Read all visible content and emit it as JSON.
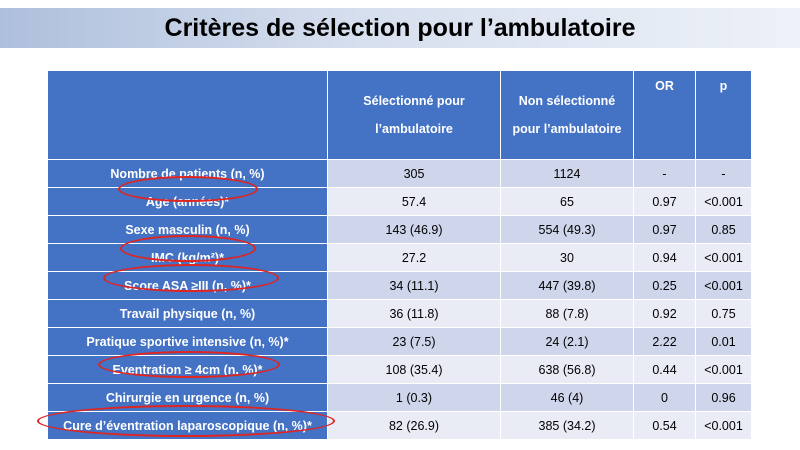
{
  "title": "Critères de sélection pour l’ambulatoire",
  "table": {
    "headers": {
      "label": "",
      "selected": [
        "Sélectionné pour",
        "l’ambulatoire"
      ],
      "not_selected": [
        "Non sélectionné",
        "pour l’ambulatoire"
      ],
      "or": "OR",
      "p": "p"
    },
    "rows": [
      {
        "label": "Nombre de patients (n, %)",
        "selected": "305",
        "not_selected": "1124",
        "or": "-",
        "p": "-"
      },
      {
        "label": "Age (années)*",
        "selected": "57.4",
        "not_selected": "65",
        "or": "0.97",
        "p": "<0.001"
      },
      {
        "label": "Sexe masculin (n, %)",
        "selected": "143 (46.9)",
        "not_selected": "554 (49.3)",
        "or": "0.97",
        "p": "0.85"
      },
      {
        "label": "IMC (kg/m²)*",
        "selected": "27.2",
        "not_selected": "30",
        "or": "0.94",
        "p": "<0.001"
      },
      {
        "label": "Score ASA ≥III (n, %)*",
        "selected": "34 (11.1)",
        "not_selected": "447 (39.8)",
        "or": "0.25",
        "p": "<0.001"
      },
      {
        "label": "Travail physique (n, %)",
        "selected": "36 (11.8)",
        "not_selected": "88 (7.8)",
        "or": "0.92",
        "p": "0.75"
      },
      {
        "label": "Pratique sportive intensive (n, %)*",
        "selected": "23 (7.5)",
        "not_selected": "24 (2.1)",
        "or": "2.22",
        "p": "0.01"
      },
      {
        "label": "Eventration ≥ 4cm (n, %)*",
        "selected": "108 (35.4)",
        "not_selected": "638 (56.8)",
        "or": "0.44",
        "p": "<0.001"
      },
      {
        "label": "Chirurgie en urgence (n, %)",
        "selected": "1 (0.3)",
        "not_selected": "46 (4)",
        "or": "0",
        "p": "0.96"
      },
      {
        "label": "Cure d’éventration laparoscopique (n, %)*",
        "selected": "82 (26.9)",
        "not_selected": "385 (34.2)",
        "or": "0.54",
        "p": "<0.001"
      }
    ]
  },
  "colors": {
    "header_fill": "#4472c4",
    "row_light": "#e9ebf5",
    "row_dark": "#cfd5ea",
    "highlight_ring": "#e0241f"
  }
}
